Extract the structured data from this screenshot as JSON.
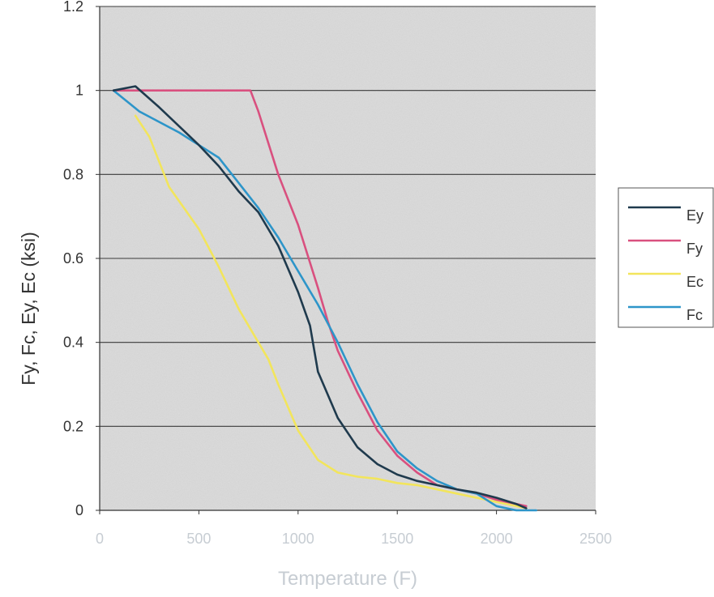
{
  "chart_data": {
    "type": "line",
    "xlabel": "Temperature (F)",
    "ylabel": "Fy, Fc, Ey, Ec (ksi)",
    "xlim": [
      0,
      2500
    ],
    "ylim": [
      0,
      1.2
    ],
    "x_ticks": [
      "0",
      "500",
      "1000",
      "1500",
      "2000",
      "2500"
    ],
    "y_ticks": [
      "0",
      "0.2",
      "0.4",
      "0.6",
      "0.8",
      "1",
      "1.2"
    ],
    "grid": "horizontal",
    "plot_background": "#dcdcdc",
    "legend_position": "right",
    "series": [
      {
        "name": "Ey",
        "color": "#1f3a4d",
        "points": [
          [
            70,
            1.0
          ],
          [
            180,
            1.01
          ],
          [
            300,
            0.96
          ],
          [
            500,
            0.87
          ],
          [
            600,
            0.82
          ],
          [
            700,
            0.76
          ],
          [
            800,
            0.71
          ],
          [
            900,
            0.63
          ],
          [
            1000,
            0.52
          ],
          [
            1060,
            0.44
          ],
          [
            1100,
            0.33
          ],
          [
            1200,
            0.22
          ],
          [
            1300,
            0.15
          ],
          [
            1400,
            0.11
          ],
          [
            1500,
            0.085
          ],
          [
            1600,
            0.07
          ],
          [
            1700,
            0.06
          ],
          [
            1800,
            0.05
          ],
          [
            1900,
            0.042
          ],
          [
            2000,
            0.03
          ],
          [
            2100,
            0.015
          ],
          [
            2150,
            0.005
          ]
        ]
      },
      {
        "name": "Fy",
        "color": "#d9507f",
        "points": [
          [
            70,
            1.0
          ],
          [
            400,
            1.0
          ],
          [
            700,
            1.0
          ],
          [
            760,
            1.0
          ],
          [
            800,
            0.95
          ],
          [
            900,
            0.8
          ],
          [
            1000,
            0.68
          ],
          [
            1100,
            0.53
          ],
          [
            1150,
            0.45
          ],
          [
            1200,
            0.38
          ],
          [
            1300,
            0.28
          ],
          [
            1400,
            0.19
          ],
          [
            1500,
            0.13
          ],
          [
            1600,
            0.09
          ],
          [
            1700,
            0.06
          ],
          [
            1800,
            0.05
          ],
          [
            1900,
            0.04
          ],
          [
            2000,
            0.025
          ],
          [
            2100,
            0.015
          ],
          [
            2150,
            0.01
          ]
        ]
      },
      {
        "name": "Ec",
        "color": "#f2e55c",
        "points": [
          [
            180,
            0.94
          ],
          [
            250,
            0.89
          ],
          [
            350,
            0.77
          ],
          [
            500,
            0.67
          ],
          [
            600,
            0.58
          ],
          [
            700,
            0.48
          ],
          [
            800,
            0.4
          ],
          [
            850,
            0.36
          ],
          [
            900,
            0.3
          ],
          [
            1000,
            0.19
          ],
          [
            1100,
            0.12
          ],
          [
            1200,
            0.09
          ],
          [
            1300,
            0.08
          ],
          [
            1400,
            0.075
          ],
          [
            1500,
            0.065
          ],
          [
            1600,
            0.06
          ],
          [
            1700,
            0.05
          ],
          [
            1800,
            0.04
          ],
          [
            1900,
            0.03
          ],
          [
            2000,
            0.02
          ],
          [
            2100,
            0.01
          ],
          [
            2150,
            0.005
          ]
        ]
      },
      {
        "name": "Fc",
        "color": "#2d95c9",
        "points": [
          [
            70,
            1.0
          ],
          [
            200,
            0.95
          ],
          [
            400,
            0.9
          ],
          [
            600,
            0.84
          ],
          [
            700,
            0.78
          ],
          [
            800,
            0.72
          ],
          [
            900,
            0.65
          ],
          [
            1000,
            0.57
          ],
          [
            1100,
            0.49
          ],
          [
            1200,
            0.4
          ],
          [
            1300,
            0.3
          ],
          [
            1400,
            0.21
          ],
          [
            1500,
            0.14
          ],
          [
            1600,
            0.1
          ],
          [
            1700,
            0.07
          ],
          [
            1800,
            0.05
          ],
          [
            1900,
            0.04
          ],
          [
            2000,
            0.01
          ],
          [
            2100,
            0.0
          ],
          [
            2200,
            0.0
          ]
        ]
      }
    ]
  }
}
